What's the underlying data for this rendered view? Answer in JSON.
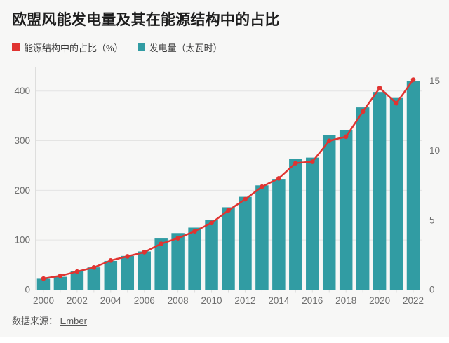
{
  "title": "欧盟风能发电量及其在能源结构中的占比",
  "legend": [
    {
      "label": "能源结构中的占比（%）",
      "color": "#e03431",
      "icon": "red-square"
    },
    {
      "label": "发电量（太瓦时）",
      "color": "#319ca3",
      "icon": "teal-square"
    }
  ],
  "footer": {
    "source_label": "数据来源：",
    "source_link": "Ember"
  },
  "colors": {
    "background": "#f7f7f6",
    "bar": "#319ca3",
    "line": "#e03431",
    "grid": "#e4e4e3",
    "axis": "#c9c9c9",
    "axis_side": "#dededd",
    "tick_text": "#6e6e6e"
  },
  "chart_data": {
    "type": "bar+line combo",
    "title": "欧盟风能发电量及其在能源结构中的占比",
    "x": [
      2000,
      2001,
      2002,
      2003,
      2004,
      2005,
      2006,
      2007,
      2008,
      2009,
      2010,
      2011,
      2012,
      2013,
      2014,
      2015,
      2016,
      2017,
      2018,
      2019,
      2020,
      2021,
      2022
    ],
    "x_tick_labels": [
      "2000",
      "2002",
      "2004",
      "2006",
      "2008",
      "2010",
      "2012",
      "2014",
      "2016",
      "2018",
      "2020",
      "2022"
    ],
    "series": [
      {
        "name": "发电量（太瓦时）",
        "type": "bar",
        "axis": "left",
        "color": "#319ca3",
        "values": [
          22,
          26,
          37,
          45,
          58,
          68,
          77,
          103,
          114,
          125,
          140,
          166,
          187,
          210,
          223,
          263,
          266,
          312,
          321,
          367,
          398,
          386,
          420
        ]
      },
      {
        "name": "能源结构中的占比（%）",
        "type": "line",
        "axis": "right",
        "color": "#e03431",
        "values": [
          0.8,
          1.0,
          1.3,
          1.6,
          2.1,
          2.4,
          2.7,
          3.3,
          3.7,
          4.2,
          4.8,
          5.7,
          6.5,
          7.4,
          8.0,
          9.1,
          9.2,
          10.7,
          11.0,
          12.8,
          14.5,
          13.4,
          15.1
        ]
      }
    ],
    "left_axis": {
      "ticks": [
        0,
        100,
        200,
        300,
        400
      ],
      "ylim": [
        0,
        442
      ]
    },
    "right_axis": {
      "ticks": [
        0,
        5,
        10,
        15
      ],
      "ylim": [
        0,
        15.78
      ]
    },
    "grid": true,
    "legend_position": "top-left"
  }
}
